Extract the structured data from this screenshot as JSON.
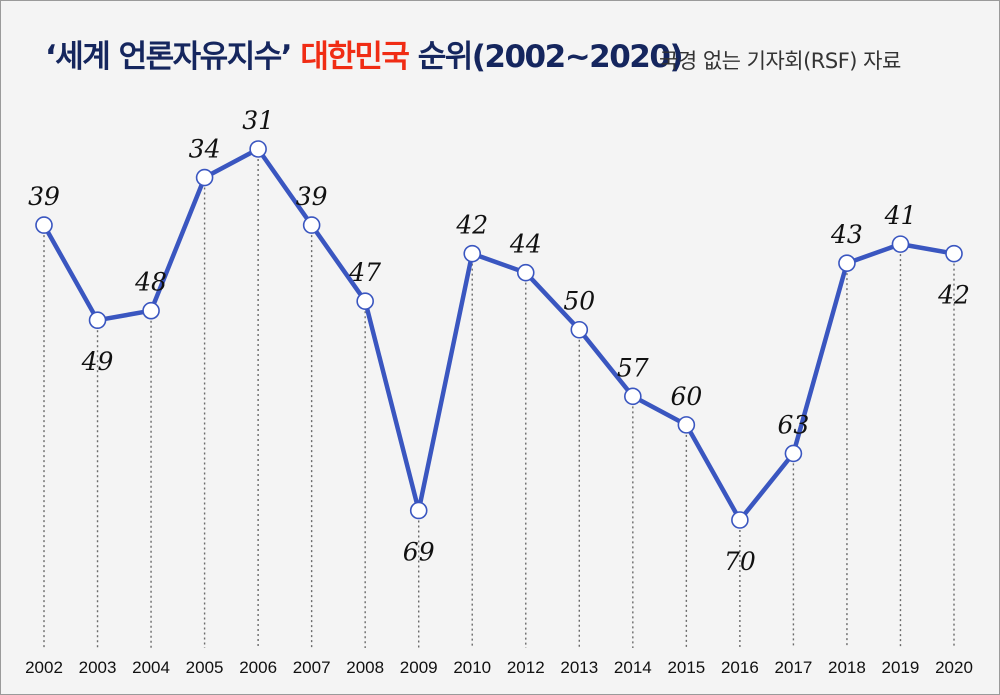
{
  "title": {
    "part1": "‘세계 언론자유지수’",
    "part2": "대한민국",
    "part3": "순위(2002~2020)"
  },
  "source": "국경 없는 기자회(RSF) 자료",
  "colors": {
    "line": "#3a56c0",
    "title_navy": "#15265e",
    "title_red": "#f02c14",
    "background": "#f4f4f4"
  },
  "chart_data": {
    "type": "line",
    "categories": [
      "2002",
      "2003",
      "2004",
      "2005",
      "2006",
      "2007",
      "2008",
      "2009",
      "2010",
      "2012",
      "2013",
      "2014",
      "2015",
      "2016",
      "2017",
      "2018",
      "2019",
      "2020"
    ],
    "values": [
      39,
      49,
      48,
      34,
      31,
      39,
      47,
      69,
      42,
      44,
      50,
      57,
      60,
      70,
      63,
      43,
      41,
      42
    ],
    "y_inverted": true,
    "ylim": [
      31,
      70
    ],
    "grid": "dotted vertical drop lines",
    "legend": "none"
  }
}
